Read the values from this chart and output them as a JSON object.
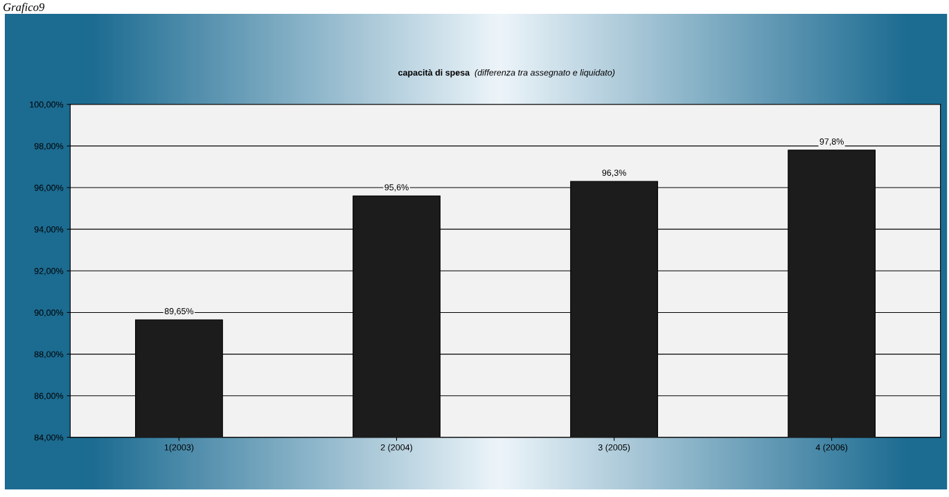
{
  "chart_data": {
    "type": "bar",
    "title": "capacità di spesa",
    "subtitle": "(differenza tra assegnato e liquidato)",
    "annotations": [
      "Grafico9"
    ],
    "categories": [
      "1(2003)",
      "2 (2004)",
      "3 (2005)",
      "4 (2006)"
    ],
    "values": [
      89.65,
      95.6,
      96.3,
      97.8
    ],
    "value_labels": [
      "89,65%",
      "95,6%",
      "96,3%",
      "97,8%"
    ],
    "color": "#1c1c1c",
    "ylim": [
      84,
      100
    ],
    "yticks": [
      {
        "value": 84,
        "label": "84,00%"
      },
      {
        "value": 86,
        "label": "86,00%"
      },
      {
        "value": 88,
        "label": "88,00%"
      },
      {
        "value": 90,
        "label": "90,00%"
      },
      {
        "value": 92,
        "label": "92,00%"
      },
      {
        "value": 94,
        "label": "94,00%"
      },
      {
        "value": 96,
        "label": "96,00%"
      },
      {
        "value": 98,
        "label": "98,00%"
      },
      {
        "value": 100,
        "label": "100,00%"
      }
    ],
    "grid": "y",
    "legend": false
  }
}
